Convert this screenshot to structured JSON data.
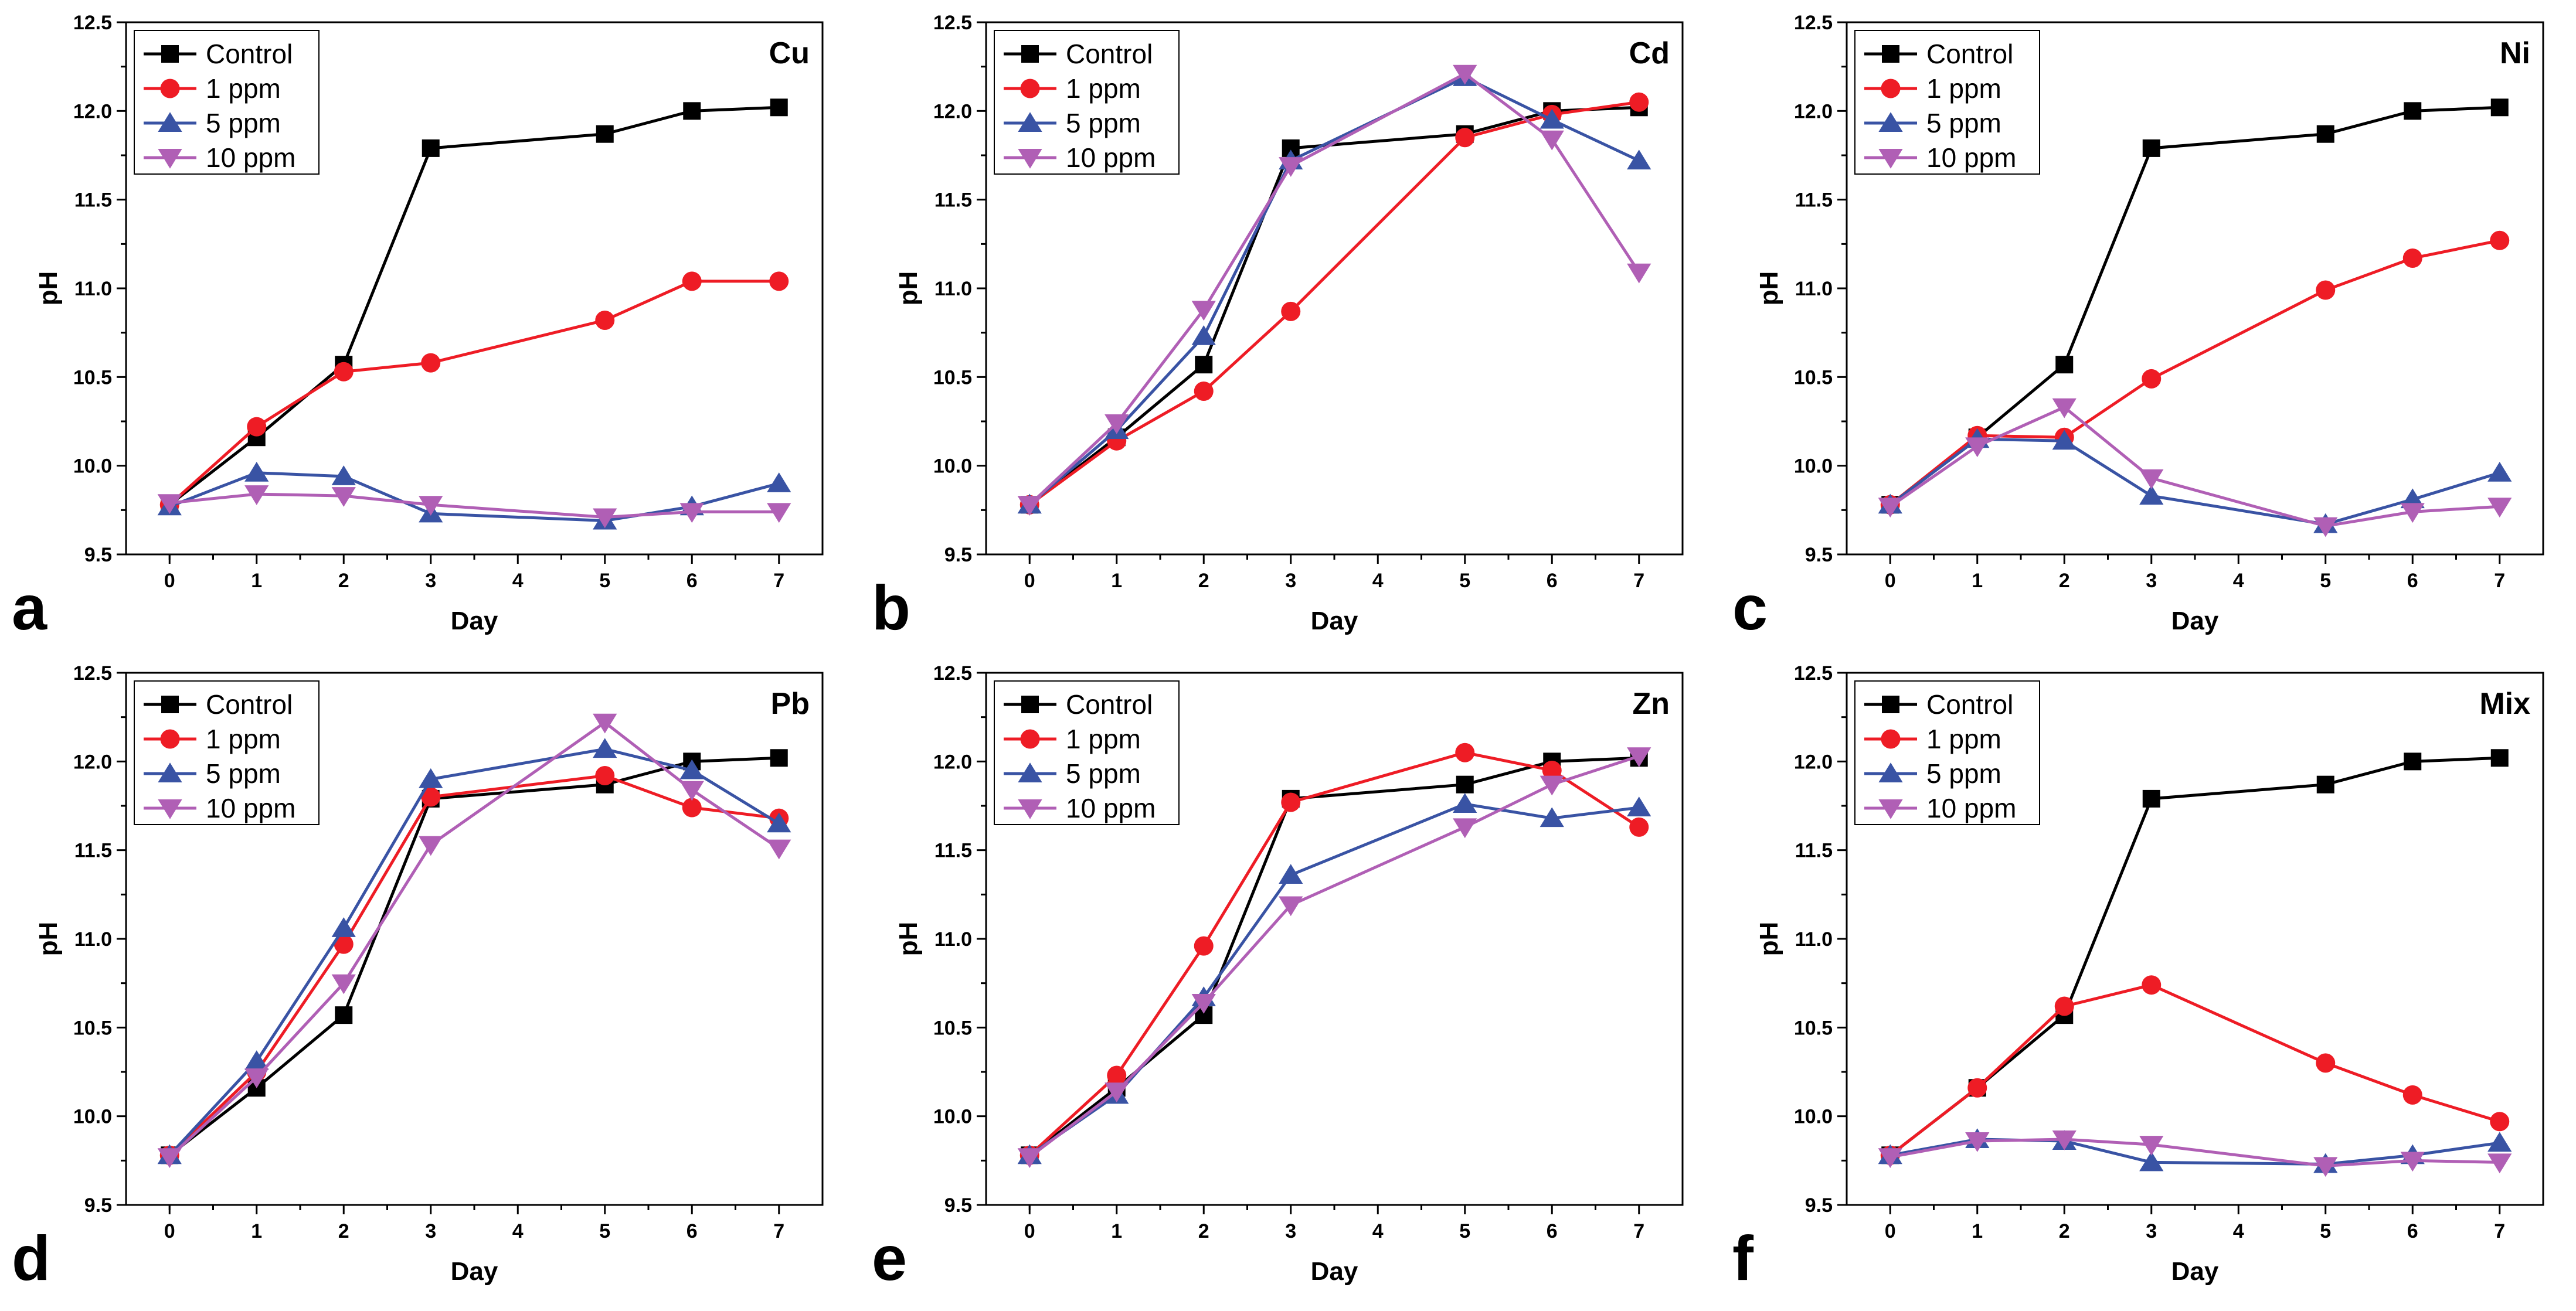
{
  "figure": {
    "panel_letters": [
      "a",
      "b",
      "c",
      "d",
      "e",
      "f"
    ]
  },
  "legend": {
    "labels": [
      "Control",
      "1 ppm",
      "5 ppm",
      "10 ppm"
    ]
  },
  "series_styles": [
    {
      "name": "Control",
      "color": "#000000",
      "marker": "square"
    },
    {
      "name": "1 ppm",
      "color": "#ee1c25",
      "marker": "circle"
    },
    {
      "name": "5 ppm",
      "color": "#3953a4",
      "marker": "triangle-up"
    },
    {
      "name": "10 ppm",
      "color": "#b05fb5",
      "marker": "triangle-down"
    }
  ],
  "chart_data": [
    {
      "type": "line",
      "panel": "a",
      "title": "Cu",
      "xlabel": "Day",
      "ylabel": "pH",
      "x_ticks": [
        0,
        1,
        2,
        3,
        4,
        5,
        6,
        7
      ],
      "y_ticks": [
        "9.5",
        "10.0",
        "10.5",
        "11.0",
        "11.5",
        "12.0",
        "12.5"
      ],
      "xlim": [
        -0.5,
        7.5
      ],
      "ylim": [
        9.5,
        12.5
      ],
      "x": [
        0,
        1,
        2,
        3,
        5,
        6,
        7
      ],
      "series": [
        {
          "name": "Control",
          "values": [
            9.78,
            10.16,
            10.57,
            11.79,
            11.87,
            12.0,
            12.02
          ]
        },
        {
          "name": "1 ppm",
          "values": [
            9.78,
            10.22,
            10.53,
            10.58,
            10.82,
            11.04,
            11.04
          ]
        },
        {
          "name": "5 ppm",
          "values": [
            9.77,
            9.96,
            9.94,
            9.73,
            9.69,
            9.77,
            9.9
          ]
        },
        {
          "name": "10 ppm",
          "values": [
            9.79,
            9.84,
            9.83,
            9.78,
            9.71,
            9.74,
            9.74
          ]
        }
      ]
    },
    {
      "type": "line",
      "panel": "b",
      "title": "Cd",
      "xlabel": "Day",
      "ylabel": "pH",
      "x_ticks": [
        0,
        1,
        2,
        3,
        4,
        5,
        6,
        7
      ],
      "y_ticks": [
        "9.5",
        "10.0",
        "10.5",
        "11.0",
        "11.5",
        "12.0",
        "12.5"
      ],
      "xlim": [
        -0.5,
        7.5
      ],
      "ylim": [
        9.5,
        12.5
      ],
      "x": [
        0,
        1,
        2,
        3,
        5,
        6,
        7
      ],
      "series": [
        {
          "name": "Control",
          "values": [
            9.78,
            10.16,
            10.57,
            11.79,
            11.87,
            12.0,
            12.02
          ]
        },
        {
          "name": "1 ppm",
          "values": [
            9.78,
            10.14,
            10.42,
            10.87,
            11.85,
            11.98,
            12.05
          ]
        },
        {
          "name": "5 ppm",
          "values": [
            9.78,
            10.2,
            10.73,
            11.72,
            12.19,
            11.95,
            11.72
          ]
        },
        {
          "name": "10 ppm",
          "values": [
            9.78,
            10.24,
            10.88,
            11.69,
            12.21,
            11.84,
            11.09
          ]
        }
      ]
    },
    {
      "type": "line",
      "panel": "c",
      "title": "Ni",
      "xlabel": "Day",
      "ylabel": "pH",
      "x_ticks": [
        0,
        1,
        2,
        3,
        4,
        5,
        6,
        7
      ],
      "y_ticks": [
        "9.5",
        "10.0",
        "10.5",
        "11.0",
        "11.5",
        "12.0",
        "12.5"
      ],
      "xlim": [
        -0.5,
        7.5
      ],
      "ylim": [
        9.5,
        12.5
      ],
      "x": [
        0,
        1,
        2,
        3,
        5,
        6,
        7
      ],
      "series": [
        {
          "name": "Control",
          "values": [
            9.78,
            10.16,
            10.57,
            11.79,
            11.87,
            12.0,
            12.02
          ]
        },
        {
          "name": "1 ppm",
          "values": [
            9.78,
            10.17,
            10.16,
            10.49,
            10.99,
            11.17,
            11.27
          ]
        },
        {
          "name": "5 ppm",
          "values": [
            9.78,
            10.15,
            10.14,
            9.83,
            9.67,
            9.81,
            9.96
          ]
        },
        {
          "name": "10 ppm",
          "values": [
            9.77,
            10.11,
            10.33,
            9.93,
            9.66,
            9.74,
            9.77
          ]
        }
      ]
    },
    {
      "type": "line",
      "panel": "d",
      "title": "Pb",
      "xlabel": "Day",
      "ylabel": "pH",
      "x_ticks": [
        0,
        1,
        2,
        3,
        4,
        5,
        6,
        7
      ],
      "y_ticks": [
        "9.5",
        "10.0",
        "10.5",
        "11.0",
        "11.5",
        "12.0",
        "12.5"
      ],
      "xlim": [
        -0.5,
        7.5
      ],
      "ylim": [
        9.5,
        12.5
      ],
      "x": [
        0,
        1,
        2,
        3,
        5,
        6,
        7
      ],
      "series": [
        {
          "name": "Control",
          "values": [
            9.78,
            10.16,
            10.57,
            11.79,
            11.87,
            12.0,
            12.02
          ]
        },
        {
          "name": "1 ppm",
          "values": [
            9.78,
            10.25,
            10.97,
            11.8,
            11.92,
            11.74,
            11.68
          ]
        },
        {
          "name": "5 ppm",
          "values": [
            9.78,
            10.31,
            11.06,
            11.9,
            12.07,
            11.95,
            11.65
          ]
        },
        {
          "name": "10 ppm",
          "values": [
            9.77,
            10.22,
            10.75,
            11.53,
            12.22,
            11.84,
            11.51
          ]
        }
      ]
    },
    {
      "type": "line",
      "panel": "e",
      "title": "Zn",
      "xlabel": "Day",
      "ylabel": "pH",
      "x_ticks": [
        0,
        1,
        2,
        3,
        4,
        5,
        6,
        7
      ],
      "y_ticks": [
        "9.5",
        "10.0",
        "10.5",
        "11.0",
        "11.5",
        "12.0",
        "12.5"
      ],
      "xlim": [
        -0.5,
        7.5
      ],
      "ylim": [
        9.5,
        12.5
      ],
      "x": [
        0,
        1,
        2,
        3,
        5,
        6,
        7
      ],
      "series": [
        {
          "name": "Control",
          "values": [
            9.78,
            10.16,
            10.57,
            11.79,
            11.87,
            12.0,
            12.02
          ]
        },
        {
          "name": "1 ppm",
          "values": [
            9.78,
            10.23,
            10.96,
            11.77,
            12.05,
            11.95,
            11.63
          ]
        },
        {
          "name": "5 ppm",
          "values": [
            9.78,
            10.12,
            10.67,
            11.36,
            11.76,
            11.68,
            11.74
          ]
        },
        {
          "name": "10 ppm",
          "values": [
            9.77,
            10.14,
            10.64,
            11.19,
            11.63,
            11.87,
            12.03
          ]
        }
      ]
    },
    {
      "type": "line",
      "panel": "f",
      "title": "Mix",
      "xlabel": "Day",
      "ylabel": "pH",
      "x_ticks": [
        0,
        1,
        2,
        3,
        4,
        5,
        6,
        7
      ],
      "y_ticks": [
        "9.5",
        "10.0",
        "10.5",
        "11.0",
        "11.5",
        "12.0",
        "12.5"
      ],
      "xlim": [
        -0.5,
        7.5
      ],
      "ylim": [
        9.5,
        12.5
      ],
      "x": [
        0,
        1,
        2,
        3,
        5,
        6,
        7
      ],
      "series": [
        {
          "name": "Control",
          "values": [
            9.78,
            10.16,
            10.57,
            11.79,
            11.87,
            12.0,
            12.02
          ]
        },
        {
          "name": "1 ppm",
          "values": [
            9.78,
            10.16,
            10.62,
            10.74,
            10.3,
            10.12,
            9.97
          ]
        },
        {
          "name": "5 ppm",
          "values": [
            9.78,
            9.87,
            9.86,
            9.74,
            9.73,
            9.78,
            9.85
          ]
        },
        {
          "name": "10 ppm",
          "values": [
            9.77,
            9.86,
            9.87,
            9.84,
            9.72,
            9.75,
            9.74
          ]
        }
      ]
    }
  ]
}
